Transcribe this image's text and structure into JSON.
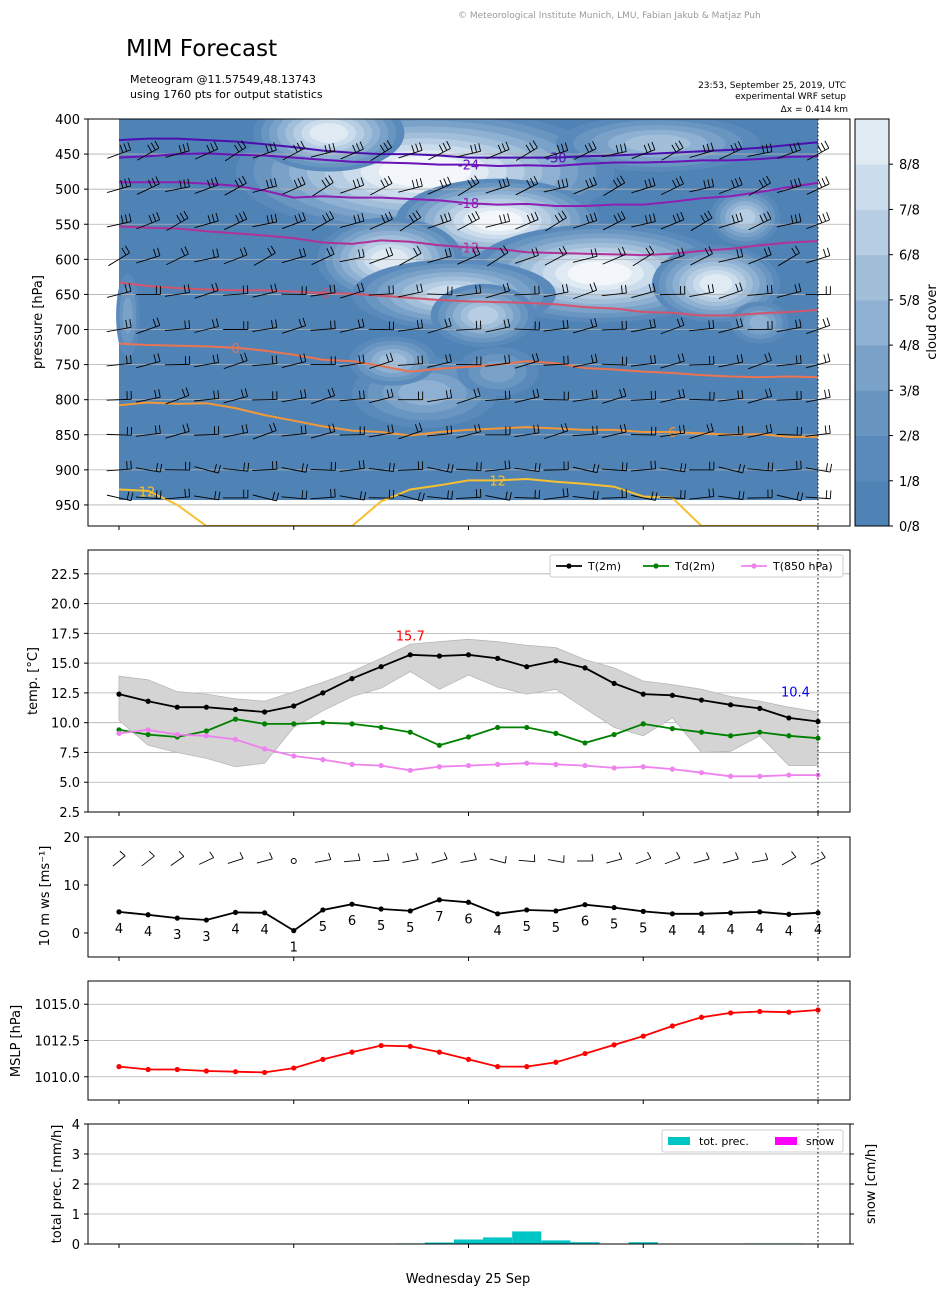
{
  "header": {
    "copyright": "© Meteorological Institute Munich, LMU, Fabian Jakub & Matjaz Puh",
    "title": "MIM Forecast",
    "meteogram_line": "Meteogram @11.57549,48.13743",
    "stats_line": "using 1760 pts for output statistics",
    "run_time": "23:53, September 25, 2019, UTC",
    "setup": "experimental WRF setup",
    "resolution": "Δx = 0.414 km"
  },
  "xaxis_label": "Wednesday 25 Sep",
  "chart_data": [
    {
      "type": "heatmap",
      "name": "cloud cover cross-section",
      "ylabel": "pressure [hPa]",
      "y_ticks": [
        400,
        450,
        500,
        550,
        600,
        650,
        700,
        750,
        800,
        850,
        900,
        950
      ],
      "ylim": [
        980,
        400
      ],
      "colorbar_label": "cloud cover",
      "colorbar_ticks": [
        "0/8",
        "1/8",
        "2/8",
        "3/8",
        "4/8",
        "5/8",
        "6/8",
        "7/8",
        "8/8"
      ],
      "colors": {
        "levels": [
          "#4f82b5",
          "#5a8abb",
          "#6995c1",
          "#7aa2c9",
          "#8eb0d2",
          "#a2bfda",
          "#b6cde3",
          "#cbdcec",
          "#e0eaf3"
        ],
        "isotherm_-30": "#4b0fb0",
        "isotherm_-24": "#6a11b8",
        "isotherm_-18": "#8f1fb3",
        "isotherm_-12": "#b23198",
        "isotherm_-6": "#d3546c",
        "isotherm_0": "#ea7350",
        "isotherm_6": "#f39838",
        "isotherm_12": "#f6c030"
      },
      "isotherm_labels": [
        "-30",
        "-24",
        "-18",
        "-12",
        "-6",
        "0",
        "6",
        "12",
        "12"
      ],
      "wind_barbs": "every 50 hPa at 25 time steps"
    },
    {
      "type": "line",
      "name": "temperature",
      "ylabel": "temp. [$^{\\circ}$C]",
      "ylabel_display": "temp. [°C]",
      "y_ticks": [
        "2.5",
        "5.0",
        "7.5",
        "10.0",
        "12.5",
        "15.0",
        "17.5",
        "20.0",
        "22.5"
      ],
      "ylim": [
        2.5,
        24.5
      ],
      "x": [
        0,
        1,
        2,
        3,
        4,
        5,
        6,
        7,
        8,
        9,
        10,
        11,
        12,
        13,
        14,
        15,
        16,
        17,
        18,
        19,
        20,
        21,
        22,
        23,
        24
      ],
      "series": [
        {
          "name": "T(2m)",
          "color": "#000000",
          "values": [
            12.4,
            11.8,
            11.3,
            11.3,
            11.1,
            10.9,
            11.4,
            12.5,
            13.7,
            14.7,
            15.7,
            15.6,
            15.7,
            15.4,
            14.7,
            15.2,
            14.6,
            13.3,
            12.4,
            12.3,
            11.9,
            11.5,
            11.2,
            10.4,
            10.1
          ]
        },
        {
          "name": "Td(2m)",
          "color": "#008000",
          "values": [
            9.4,
            9.0,
            8.8,
            9.3,
            10.3,
            9.9,
            9.9,
            10.0,
            9.9,
            9.6,
            9.2,
            8.1,
            8.8,
            9.6,
            9.6,
            9.1,
            8.3,
            9.0,
            9.9,
            9.5,
            9.2,
            8.9,
            9.2,
            8.9,
            8.7
          ]
        },
        {
          "name": "T(850 hPa)",
          "color": "#ee82ee",
          "values": [
            9.1,
            9.4,
            9.0,
            8.9,
            8.6,
            7.8,
            7.2,
            6.9,
            6.5,
            6.4,
            6.0,
            6.3,
            6.4,
            6.5,
            6.6,
            6.5,
            6.4,
            6.2,
            6.3,
            6.1,
            5.8,
            5.5,
            5.5,
            5.6,
            5.6
          ]
        }
      ],
      "band_upper": [
        13.9,
        13.6,
        12.6,
        12.4,
        12.0,
        11.8,
        12.6,
        13.4,
        14.3,
        15.4,
        16.6,
        16.8,
        17.0,
        16.8,
        16.5,
        16.3,
        15.3,
        14.6,
        13.5,
        13.2,
        12.8,
        12.2,
        11.8,
        11.3,
        10.9
      ],
      "band_lower": [
        10.2,
        8.1,
        7.5,
        7.0,
        6.3,
        6.6,
        9.6,
        11.0,
        12.2,
        12.9,
        14.3,
        12.8,
        14.0,
        13.0,
        12.4,
        12.8,
        11.2,
        9.6,
        8.9,
        10.4,
        7.5,
        7.6,
        8.9,
        6.4,
        6.4
      ],
      "band_color": "#d4d4d4",
      "annotations": [
        {
          "text": "15.7",
          "color": "#ff0000"
        },
        {
          "text": "10.4",
          "color": "#0000ff"
        }
      ],
      "legend": "top-right",
      "grid": true
    },
    {
      "type": "line",
      "name": "10 m wind speed",
      "ylabel": "10 m ws [ms$^{-1}$]",
      "ylabel_display": "10 m ws [ms⁻¹]",
      "y_ticks": [
        "0",
        "10",
        "20"
      ],
      "ylim": [
        -5,
        20
      ],
      "x": [
        0,
        1,
        2,
        3,
        4,
        5,
        6,
        7,
        8,
        9,
        10,
        11,
        12,
        13,
        14,
        15,
        16,
        17,
        18,
        19,
        20,
        21,
        22,
        23,
        24
      ],
      "values": [
        4.4,
        3.8,
        3.1,
        2.7,
        4.3,
        4.2,
        0.5,
        4.8,
        6.0,
        5.0,
        4.6,
        6.9,
        6.4,
        4.0,
        4.8,
        4.6,
        5.9,
        5.3,
        4.5,
        4.0,
        4.0,
        4.2,
        4.4,
        3.9,
        4.2
      ],
      "value_labels": [
        "4",
        "4",
        "3",
        "3",
        "4",
        "4",
        "1",
        "5",
        "6",
        "5",
        "5",
        "7",
        "6",
        "4",
        "5",
        "5",
        "6",
        "5",
        "5",
        "4",
        "4",
        "4",
        "4",
        "4",
        "4"
      ],
      "color": "#000000",
      "wind_barbs": true
    },
    {
      "type": "line",
      "name": "mean sea level pressure",
      "ylabel": "MSLP [hPa]",
      "y_ticks": [
        "1010.0",
        "1012.5",
        "1015.0"
      ],
      "ylim": [
        1008.4,
        1016.6
      ],
      "x": [
        0,
        1,
        2,
        3,
        4,
        5,
        6,
        7,
        8,
        9,
        10,
        11,
        12,
        13,
        14,
        15,
        16,
        17,
        18,
        19,
        20,
        21,
        22,
        23,
        24
      ],
      "values": [
        1010.7,
        1010.5,
        1010.5,
        1010.4,
        1010.35,
        1010.3,
        1010.6,
        1011.2,
        1011.7,
        1012.15,
        1012.1,
        1011.7,
        1011.2,
        1010.7,
        1010.7,
        1011.0,
        1011.6,
        1012.2,
        1012.8,
        1013.5,
        1014.1,
        1014.4,
        1014.5,
        1014.45,
        1014.6
      ],
      "color": "#ff0000",
      "grid": true
    },
    {
      "type": "bar",
      "name": "precipitation",
      "ylabel": "total prec. [mm/h]",
      "y2label": "snow [cm/h]",
      "y_ticks": [
        "0",
        "1",
        "2",
        "3",
        "4"
      ],
      "ylim": [
        0,
        4
      ],
      "x": [
        0,
        1,
        2,
        3,
        4,
        5,
        6,
        7,
        8,
        9,
        10,
        11,
        12,
        13,
        14,
        15,
        16,
        17,
        18,
        19,
        20,
        21,
        22,
        23,
        24
      ],
      "series": [
        {
          "name": "tot. prec.",
          "color": "#00c5c5",
          "values": [
            0,
            0,
            0,
            0,
            0,
            0,
            0,
            0,
            0,
            0,
            0.02,
            0.05,
            0.15,
            0.22,
            0.42,
            0.12,
            0.06,
            0,
            0.06,
            0,
            0,
            0,
            0.02,
            0.02,
            0
          ]
        },
        {
          "name": "snow",
          "color": "#ff00ff",
          "values": [
            0,
            0,
            0,
            0,
            0,
            0,
            0,
            0,
            0,
            0,
            0,
            0,
            0,
            0,
            0,
            0,
            0,
            0,
            0,
            0,
            0,
            0,
            0,
            0,
            0
          ]
        }
      ],
      "legend": "top-right",
      "grid": true
    }
  ]
}
